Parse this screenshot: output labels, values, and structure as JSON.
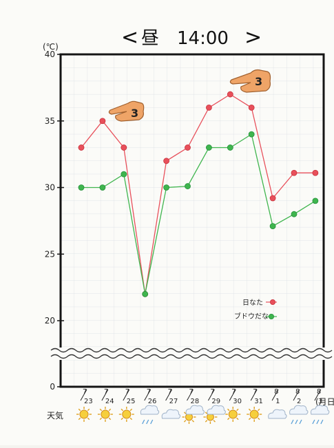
{
  "chart_data": {
    "type": "line",
    "title": "昼　14:00",
    "y_unit": "(℃)",
    "x_unit": "(月日)",
    "yticks": [
      0,
      20,
      25,
      30,
      35,
      40
    ],
    "y_break": [
      0,
      20
    ],
    "ylim": [
      20,
      40
    ],
    "grid": true,
    "legend_position": "right-lower",
    "categories": [
      {
        "top": "7",
        "bottom": "23"
      },
      {
        "top": "7",
        "bottom": "24"
      },
      {
        "top": "7",
        "bottom": "25"
      },
      {
        "top": "7",
        "bottom": "26"
      },
      {
        "top": "7",
        "bottom": "27"
      },
      {
        "top": "7",
        "bottom": "28"
      },
      {
        "top": "7",
        "bottom": "29"
      },
      {
        "top": "7",
        "bottom": "30"
      },
      {
        "top": "7",
        "bottom": "31"
      },
      {
        "top": "8",
        "bottom": "1"
      },
      {
        "top": "8",
        "bottom": "2"
      },
      {
        "top": "8",
        "bottom": "3"
      }
    ],
    "series": [
      {
        "name": "日なた",
        "color": "#e8505b",
        "values": [
          33,
          35,
          33,
          22,
          32,
          33,
          36,
          37,
          36,
          29.2,
          31.1,
          31.1
        ]
      },
      {
        "name": "ブドウだな",
        "color": "#3fb54e",
        "values": [
          30,
          30,
          31,
          22,
          30,
          30.1,
          33,
          33,
          34,
          27.1,
          28,
          29
        ]
      }
    ],
    "annotations": [
      {
        "label": "3",
        "at_category": 2,
        "icon": "pointing-hand-icon"
      },
      {
        "label": "3",
        "at_category": 8,
        "icon": "pointing-hand-icon"
      }
    ]
  },
  "weather": {
    "label": "天気",
    "icons": [
      "sun-icon",
      "sun-icon",
      "sun-icon",
      "rain-icon",
      "cloud-icon",
      "sun-cloud-icon",
      "sun-cloud-icon",
      "sun-icon",
      "sun-icon",
      "cloud-icon",
      "rain-icon",
      "rain-icon"
    ]
  }
}
